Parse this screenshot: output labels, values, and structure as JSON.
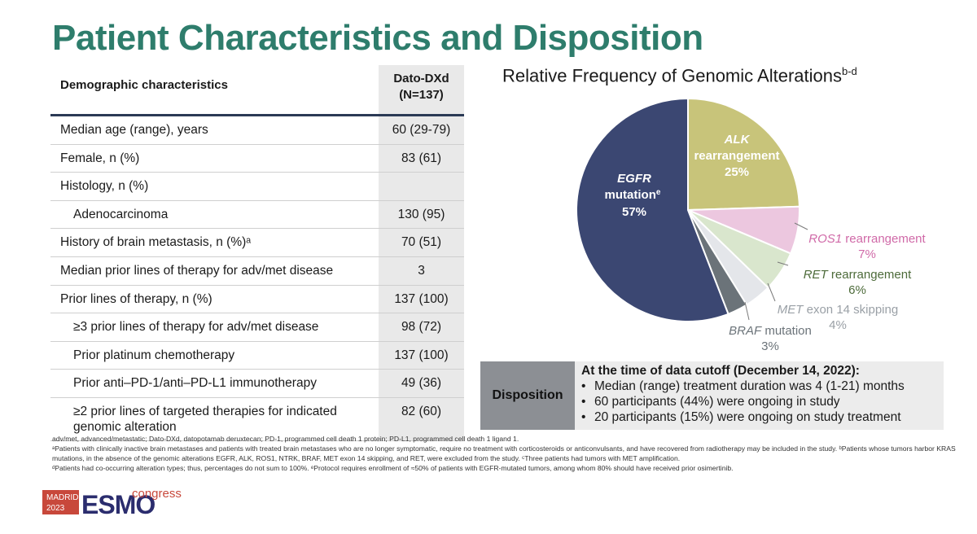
{
  "title": "Patient Characteristics and Disposition",
  "table": {
    "header_col1": "Demographic characteristics",
    "header_col2_line1": "Dato-DXd",
    "header_col2_line2": "(N=137)",
    "rows": [
      {
        "label": "Median age (range), years",
        "value": "60 (29-79)"
      },
      {
        "label": "Female, n (%)",
        "value": "83 (61)"
      },
      {
        "label": "Histology, n (%)",
        "value": ""
      },
      {
        "label": "Adenocarcinoma",
        "value": "130 (95)"
      },
      {
        "label": "History of brain metastasis, n (%)ᵃ",
        "value": "70 (51)"
      },
      {
        "label": "Median prior lines of therapy for adv/met disease",
        "value": "3"
      },
      {
        "label": "Prior lines of therapy, n (%)",
        "value": "137 (100)"
      },
      {
        "label": "≥3 prior lines of therapy for adv/met disease",
        "value": "98 (72)"
      },
      {
        "label": "Prior platinum chemotherapy",
        "value": "137 (100)"
      },
      {
        "label": "Prior anti–PD-1/anti–PD-L1 immunotherapy",
        "value": "49 (36)"
      },
      {
        "label": "≥2 prior lines of targeted therapies for indicated genomic alteration",
        "value": "82 (60)"
      }
    ]
  },
  "chart": {
    "title": "Relative Frequency of Genomic Alterations",
    "title_sup": "b-d",
    "labels": {
      "egfr_1": "EGFR",
      "egfr_2": "mutation",
      "egfr_sup": "e",
      "egfr_pct": "57%",
      "alk_1": "ALK",
      "alk_2": "rearrangement",
      "alk_pct": "25%",
      "ros1_name": "ROS1",
      "ros1_rest": " rearrangement",
      "ros1_pct": "7%",
      "ret_name": "RET",
      "ret_rest": " rearrangement",
      "ret_pct": "6%",
      "met_name": "MET",
      "met_rest": " exon 14 skipping",
      "met_pct": "4%",
      "braf_name": "BRAF",
      "braf_rest": " mutation",
      "braf_pct": "3%"
    }
  },
  "chart_data": {
    "type": "pie",
    "title": "Relative Frequency of Genomic Alterations",
    "slices": [
      {
        "name": "ALK rearrangement",
        "value": 25,
        "color": "#c8c47a"
      },
      {
        "name": "ROS1 rearrangement",
        "value": 7,
        "color": "#ecc7df"
      },
      {
        "name": "RET rearrangement",
        "value": 6,
        "color": "#d9e6cd"
      },
      {
        "name": "MET exon 14 skipping",
        "value": 4,
        "color": "#e4e6ea"
      },
      {
        "name": "BRAF mutation",
        "value": 3,
        "color": "#6b7379"
      },
      {
        "name": "EGFR mutation",
        "value": 57,
        "color": "#3b4772"
      }
    ]
  },
  "disposition": {
    "label": "Disposition",
    "head": "At the time of data cutoff (December 14, 2022):",
    "items": [
      "Median (range) treatment duration was 4 (1-21) months",
      "60 participants (44%) were ongoing in study",
      "20 participants (15%) were ongoing on study treatment"
    ]
  },
  "footnotes": [
    "adv/met, advanced/metastatic; Dato-DXd, datopotamab deruxtecan; PD-1, programmed cell death 1 protein; PD-L1, programmed cell death 1 ligand 1.",
    "ᵃPatients with clinically inactive brain metastases and patients with treated brain metastases who are no longer symptomatic, require no treatment with corticosteroids or anticonvulsants, and have recovered from radiotherapy may be included in the study. ᵇPatients whose tumors harbor KRAS mutations, in the absence of the genomic alterations EGFR, ALK, ROS1, NTRK, BRAF, MET exon 14 skipping, and RET, were excluded from the study. ᶜThree patients had tumors with MET amplification.",
    "ᵈPatients had co-occurring alteration types; thus, percentages do not sum to 100%. ᵉProtocol requires enrollment of ≈50% of patients with EGFR-mutated tumors, among whom 80% should have received prior osimertinib."
  ],
  "logo": {
    "city": "MADRID",
    "year": "2023",
    "name": "ESMO",
    "suffix": "congress"
  },
  "colors": {
    "title": "#2e7d6c",
    "header_rule": "#2b3a55",
    "ros1_text": "#d06aa8",
    "ret_text": "#4d6b3a",
    "met_text": "#9aa0a6",
    "braf_text": "#6b7379"
  }
}
